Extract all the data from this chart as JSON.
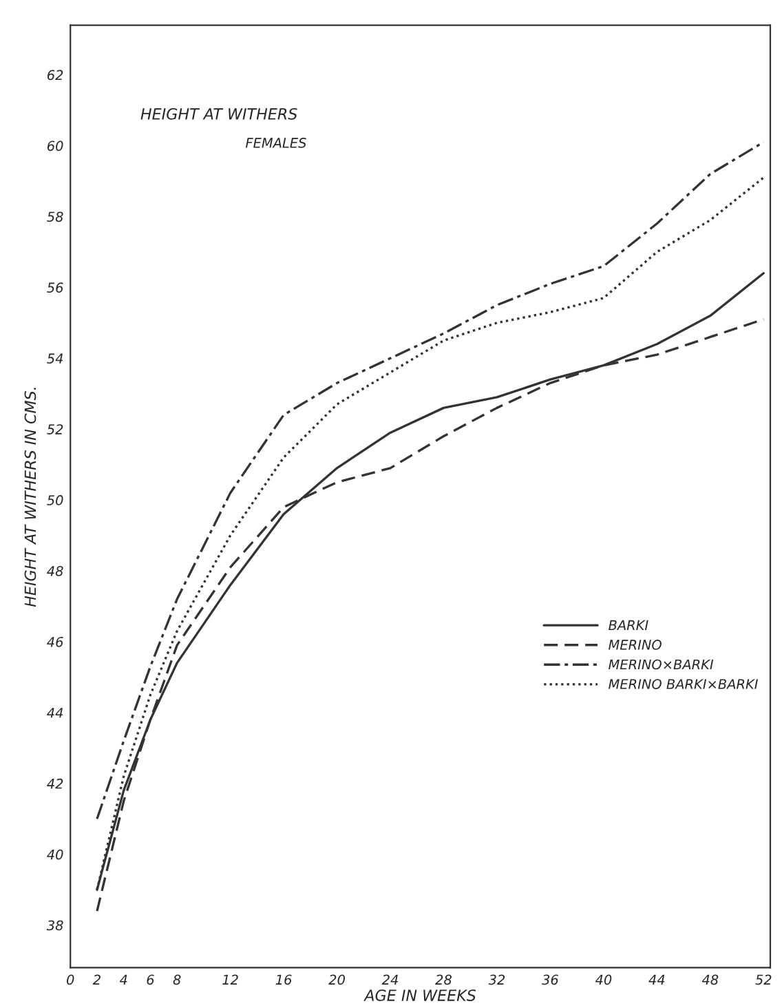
{
  "chart_data": {
    "type": "line",
    "title": "HEIGHT AT WITHERS",
    "subtitle": "FEMALES",
    "xlabel": "AGE IN WEEKS",
    "ylabel": "HEIGHT AT WITHERS IN CMS.",
    "x": [
      2,
      4,
      6,
      8,
      12,
      16,
      20,
      24,
      28,
      32,
      36,
      40,
      44,
      48,
      52
    ],
    "series": [
      {
        "name": "BARKI",
        "color": "#333333",
        "line_style": "solid",
        "values": [
          39.0,
          41.8,
          43.8,
          45.4,
          47.6,
          49.6,
          50.9,
          51.9,
          52.6,
          52.9,
          53.4,
          53.8,
          54.4,
          55.2,
          56.4
        ]
      },
      {
        "name": "MERINO",
        "color": "#333333",
        "line_style": "dashed",
        "values": [
          38.4,
          41.5,
          43.8,
          45.9,
          48.1,
          49.8,
          50.5,
          50.9,
          51.8,
          52.6,
          53.3,
          53.8,
          54.1,
          54.6,
          55.1
        ]
      },
      {
        "name": "MERINO×BARKI",
        "color": "#333333",
        "line_style": "dashdot",
        "values": [
          41.0,
          43.2,
          45.3,
          47.2,
          50.2,
          52.4,
          53.3,
          54.0,
          54.7,
          55.5,
          56.1,
          56.6,
          57.8,
          59.2,
          60.1
        ]
      },
      {
        "name": "MERINO BARKI×BARKI",
        "color": "#333333",
        "line_style": "dotted",
        "values": [
          39.0,
          42.2,
          44.5,
          46.3,
          49.0,
          51.2,
          52.7,
          53.6,
          54.5,
          55.0,
          55.3,
          55.7,
          57.0,
          57.9,
          59.1
        ]
      }
    ],
    "xlim": [
      0,
      52.5
    ],
    "ylim": [
      36.8,
      63.4
    ],
    "xticks": [
      0,
      2,
      4,
      6,
      8,
      12,
      16,
      20,
      24,
      28,
      32,
      36,
      40,
      44,
      48,
      52
    ],
    "yticks": [
      38,
      40,
      42,
      44,
      46,
      48,
      50,
      52,
      54,
      56,
      58,
      60,
      62
    ],
    "grid": false,
    "legend": "bottom right",
    "marker": "none"
  }
}
